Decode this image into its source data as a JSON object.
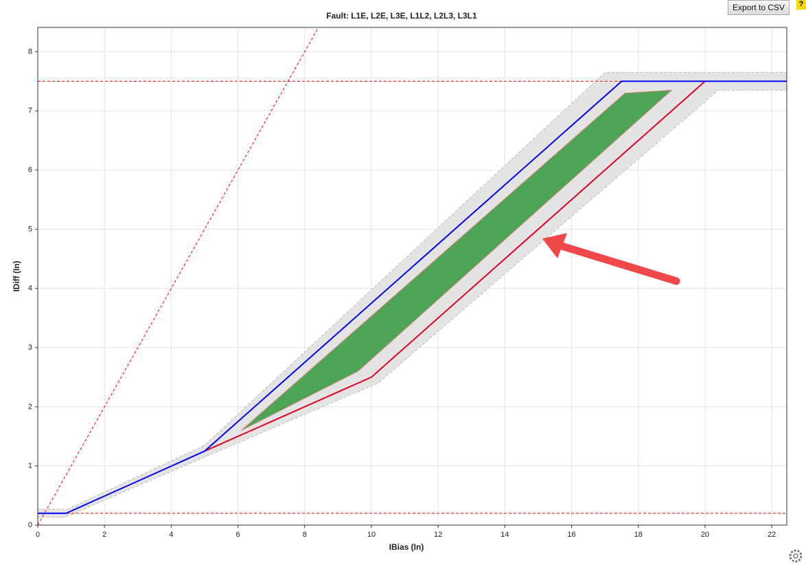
{
  "button": "Export to CSV",
  "chart_data": {
    "type": "line",
    "title": "Fault: L1E, L2E, L3E, L1L2, L2L3, L3L1",
    "x_label": "IBias (In)",
    "y_label": "IDiff (In)",
    "xlim": [
      0,
      22.45
    ],
    "ylim": [
      0,
      8.41
    ],
    "xticks": [
      0,
      2,
      4,
      6,
      8,
      10,
      12,
      14,
      16,
      18,
      20,
      22
    ],
    "yticks": [
      0,
      1,
      2,
      3,
      4,
      5,
      6,
      7,
      8
    ],
    "grid": true,
    "series": [
      {
        "kind": "area",
        "color": "#e4e4e4",
        "stroke": "#bbbbbb",
        "dashed": true,
        "x": [
          0,
          0.9,
          5,
          17,
          22.45,
          22.45,
          20.4,
          10.2,
          5,
          0.8,
          0
        ],
        "values": [
          0.27,
          0.27,
          1.35,
          7.65,
          7.65,
          7.35,
          7.35,
          2.4,
          1.15,
          0.13,
          0.13
        ]
      },
      {
        "kind": "area",
        "color": "#4ea456",
        "stroke": "#d98a7a",
        "dashed": false,
        "x": [
          6.1,
          9.6,
          19,
          17.6
        ],
        "values": [
          1.6,
          2.6,
          7.35,
          7.3
        ]
      },
      {
        "kind": "line",
        "color": "#ff0000",
        "dashed": true,
        "x": [
          0,
          22.45
        ],
        "values": [
          7.5,
          7.5
        ]
      },
      {
        "kind": "line",
        "color": "#ff0000",
        "dashed": true,
        "x": [
          0,
          22.45
        ],
        "values": [
          0.2,
          0.2
        ]
      },
      {
        "kind": "line",
        "color": "#ff0000",
        "dashed": true,
        "x": [
          0,
          8.41
        ],
        "values": [
          0,
          8.41
        ]
      },
      {
        "kind": "line",
        "color": "#dd0022",
        "dashed": false,
        "x": [
          5,
          10,
          20
        ],
        "values": [
          1.25,
          2.5,
          7.5
        ]
      },
      {
        "kind": "line",
        "color": "#0000ee",
        "dashed": false,
        "x": [
          0,
          0.85,
          5,
          17.5,
          22.45
        ],
        "values": [
          0.2,
          0.2,
          1.25,
          7.5,
          7.5
        ]
      }
    ]
  }
}
